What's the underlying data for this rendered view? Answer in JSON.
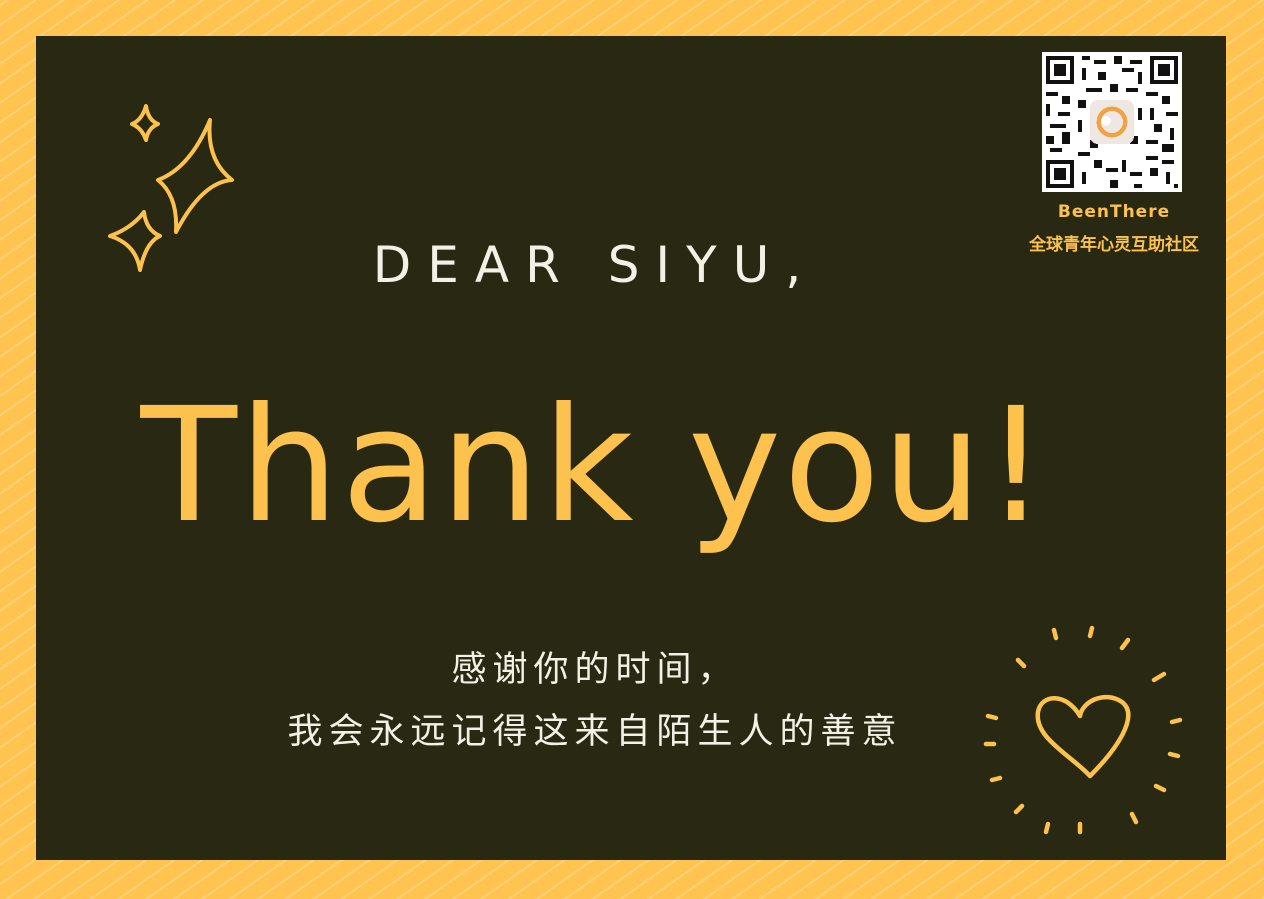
{
  "card": {
    "greeting": "DEAR SIYU,",
    "headline": "Thank you!",
    "message_line1": "感谢你的时间，",
    "message_line2": "我会永远记得这来自陌生人的善意"
  },
  "qr_block": {
    "brand": "BeenThere",
    "tagline": "全球青年心灵互助社区"
  },
  "colors": {
    "frame": "#ffc34f",
    "card": "#292812",
    "accent": "#fcc24d",
    "text": "#f3f1e6"
  },
  "icons": [
    "sparkle-icon",
    "heart-icon",
    "qr-code"
  ]
}
